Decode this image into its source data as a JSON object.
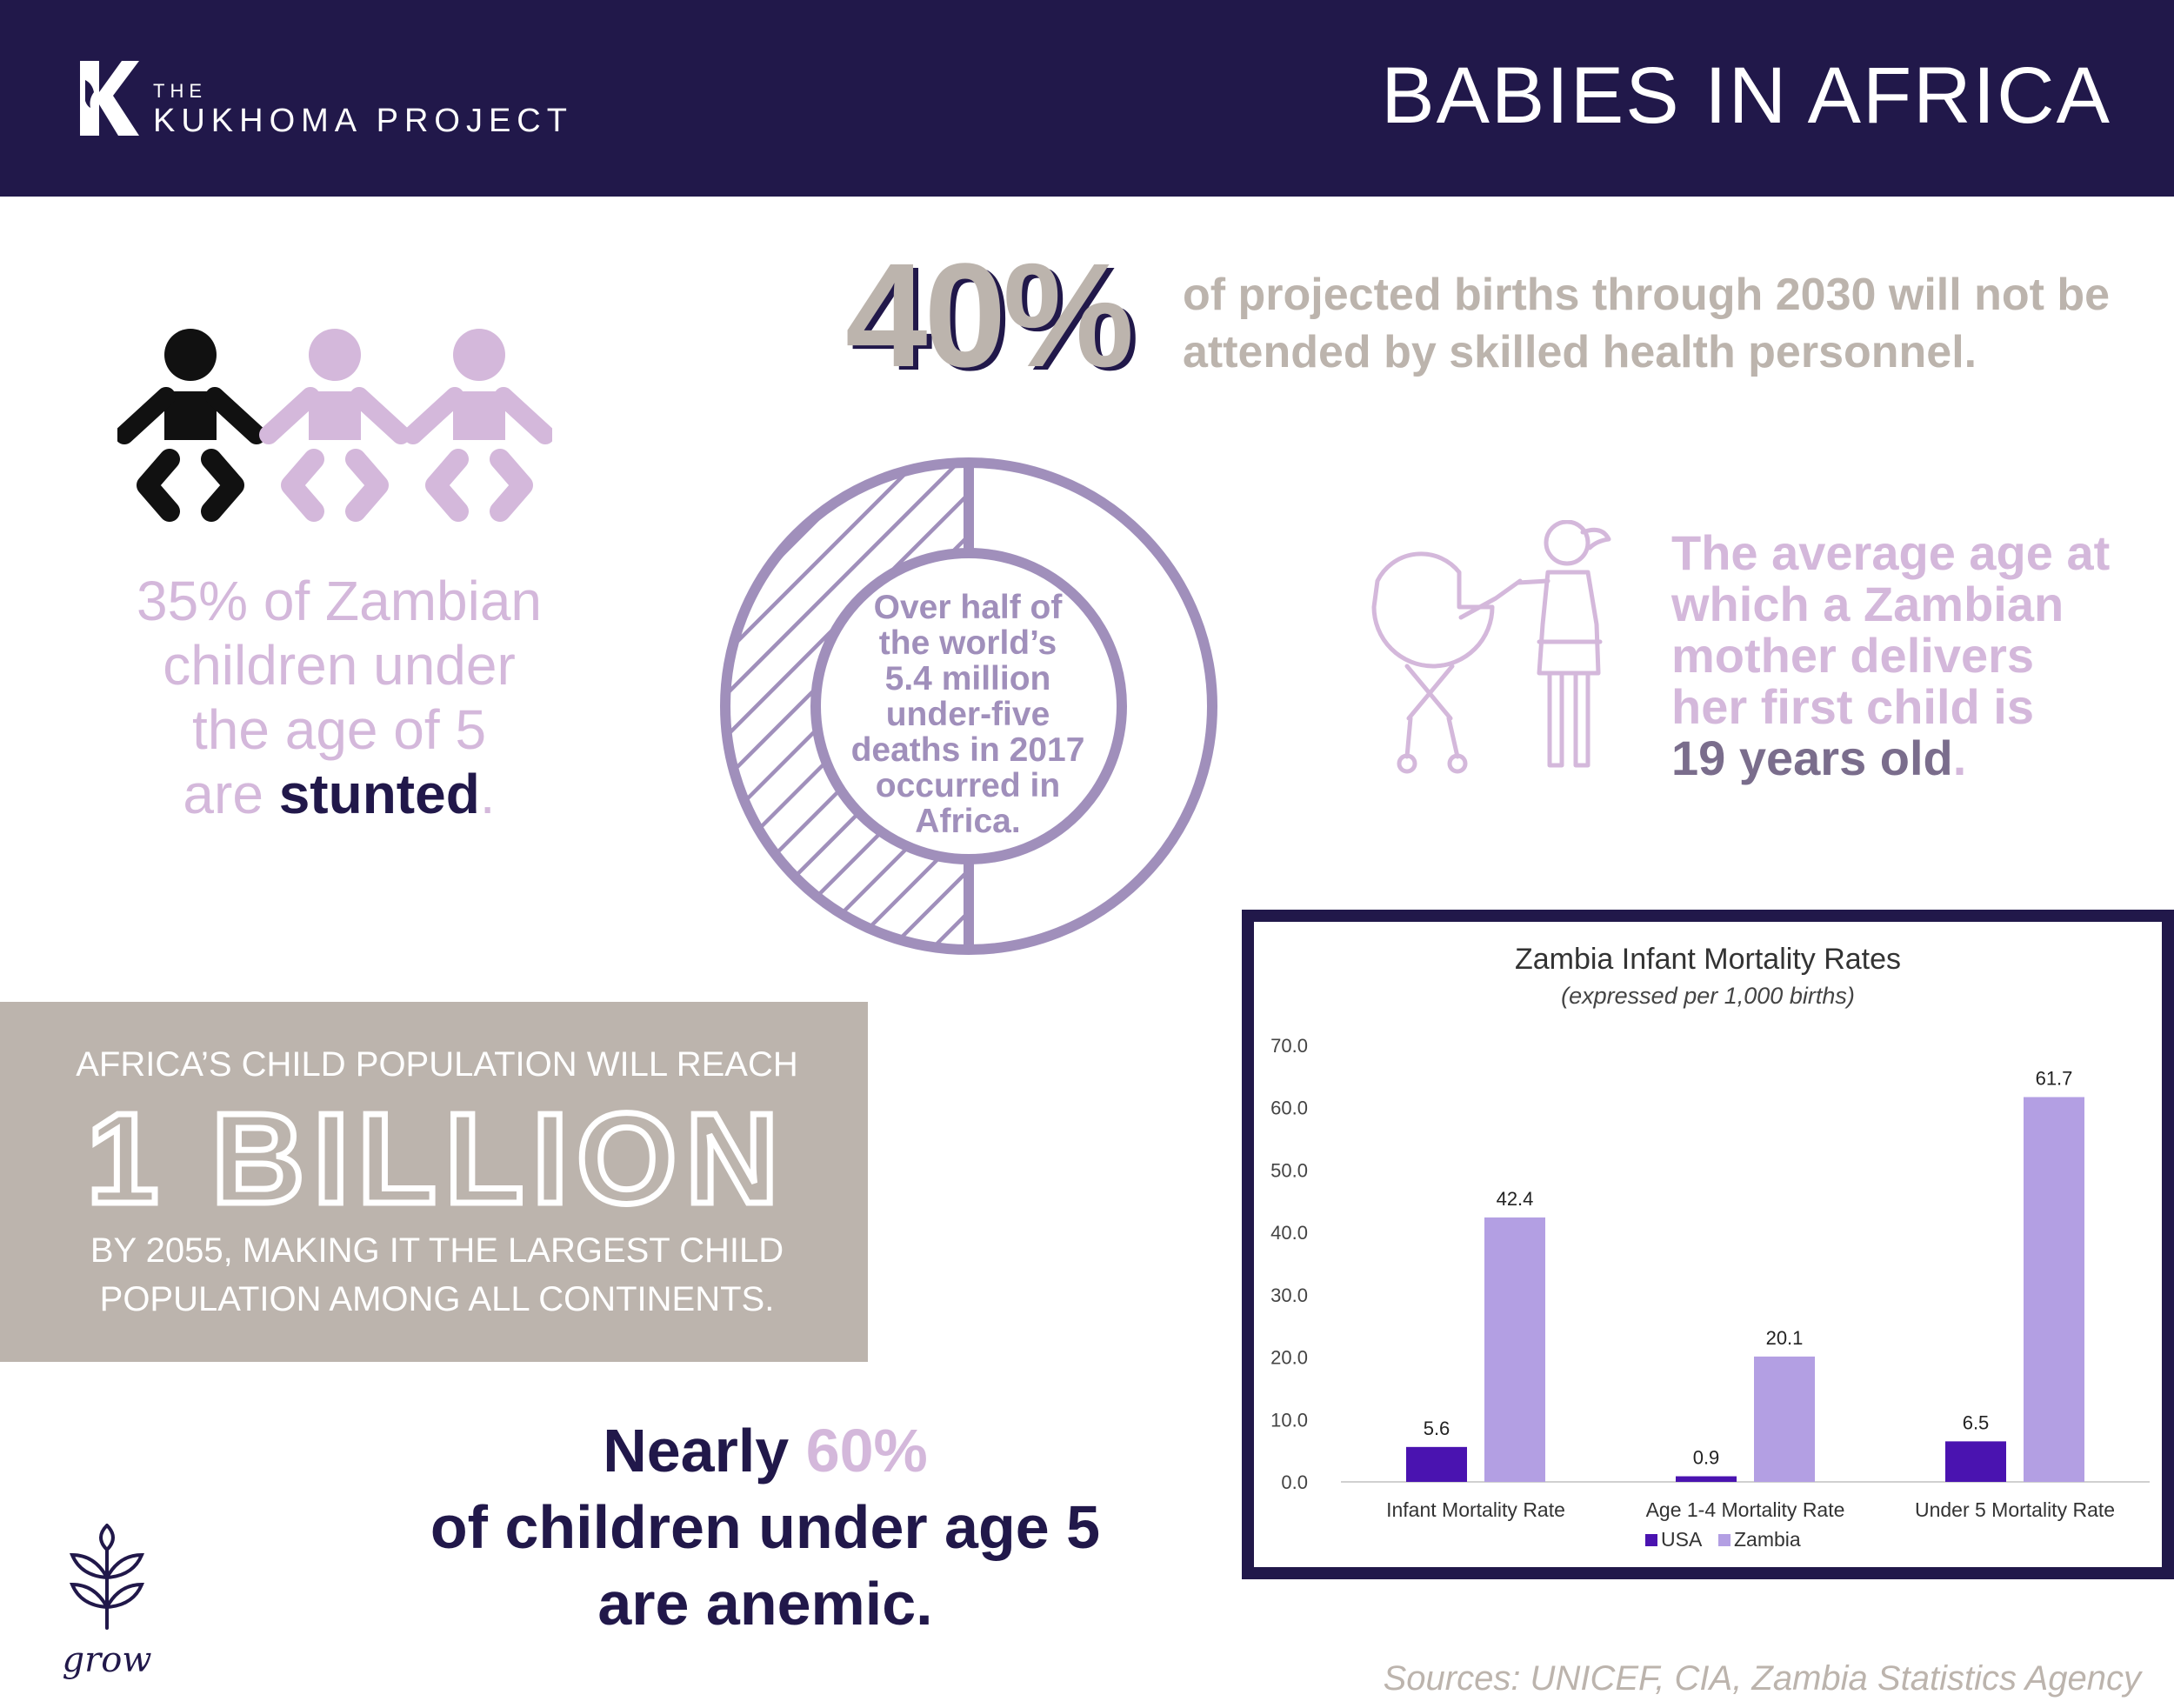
{
  "header": {
    "logo_the": "THE",
    "logo_name": "KUKHOMA PROJECT",
    "title": "BABIES IN AFRICA",
    "background": "#21184a"
  },
  "stat_births": {
    "value": "40%",
    "text": "of projected births through 2030 will not be attended by skilled health personnel."
  },
  "stat_stunted": {
    "line1": "35% of Zambian",
    "line2": "children under",
    "line3": "the age of 5",
    "are": "are ",
    "emph": "stunted",
    "period": ".",
    "icons": [
      "baby-icon",
      "baby-icon",
      "baby-icon"
    ],
    "highlight_count": 1
  },
  "stat_deaths": {
    "text_lines": [
      "Over half of",
      "the world’s",
      "5.4 million",
      "under-five",
      "deaths in 2017",
      "occurred in",
      "Africa."
    ],
    "share": 0.5
  },
  "stat_mother": {
    "line1": "The average age at",
    "line2": "which a Zambian",
    "line3": "mother delivers",
    "line4": "her first child is",
    "emph": "19 years old",
    "period": "."
  },
  "stat_population": {
    "line1": "AFRICA’S CHILD POPULATION WILL REACH",
    "big": "1 BILLION",
    "line3a": "BY 2055, MAKING IT THE LARGEST CHILD",
    "line3b": "POPULATION AMONG ALL CONTINENTS."
  },
  "stat_anemic": {
    "lead": "Nearly ",
    "pct": "60%",
    "line2": "of children under age 5",
    "line3": "are anemic."
  },
  "grow_logo": "grow",
  "sources": "Sources: UNICEF, CIA, Zambia Statistics Agency",
  "chart_data": {
    "type": "bar",
    "title": "Zambia Infant Mortality Rates",
    "subtitle": "(expressed per 1,000 births)",
    "categories": [
      "Infant Mortality Rate",
      "Age 1-4 Mortality Rate",
      "Under 5 Mortality Rate"
    ],
    "series": [
      {
        "name": "USA",
        "values": [
          5.6,
          0.9,
          6.5
        ],
        "color": "#4a13b0"
      },
      {
        "name": "Zambia",
        "values": [
          42.4,
          20.1,
          61.7
        ],
        "color": "#b39fe3"
      }
    ],
    "value_labels": {
      "USA": [
        "5.6",
        "0.9",
        "6.5"
      ],
      "Zambia": [
        "42.4",
        "20.1",
        "61.7"
      ]
    },
    "yticks": [
      "0.0",
      "10.0",
      "20.0",
      "30.0",
      "40.0",
      "50.0",
      "60.0",
      "70.0"
    ],
    "ylim": [
      0,
      70
    ],
    "legend": "bottom",
    "grid": false
  },
  "colors": {
    "navy": "#21184a",
    "lilac": "#d4b8db",
    "taupe": "#bcb4ad",
    "donut": "#a08fbb"
  }
}
